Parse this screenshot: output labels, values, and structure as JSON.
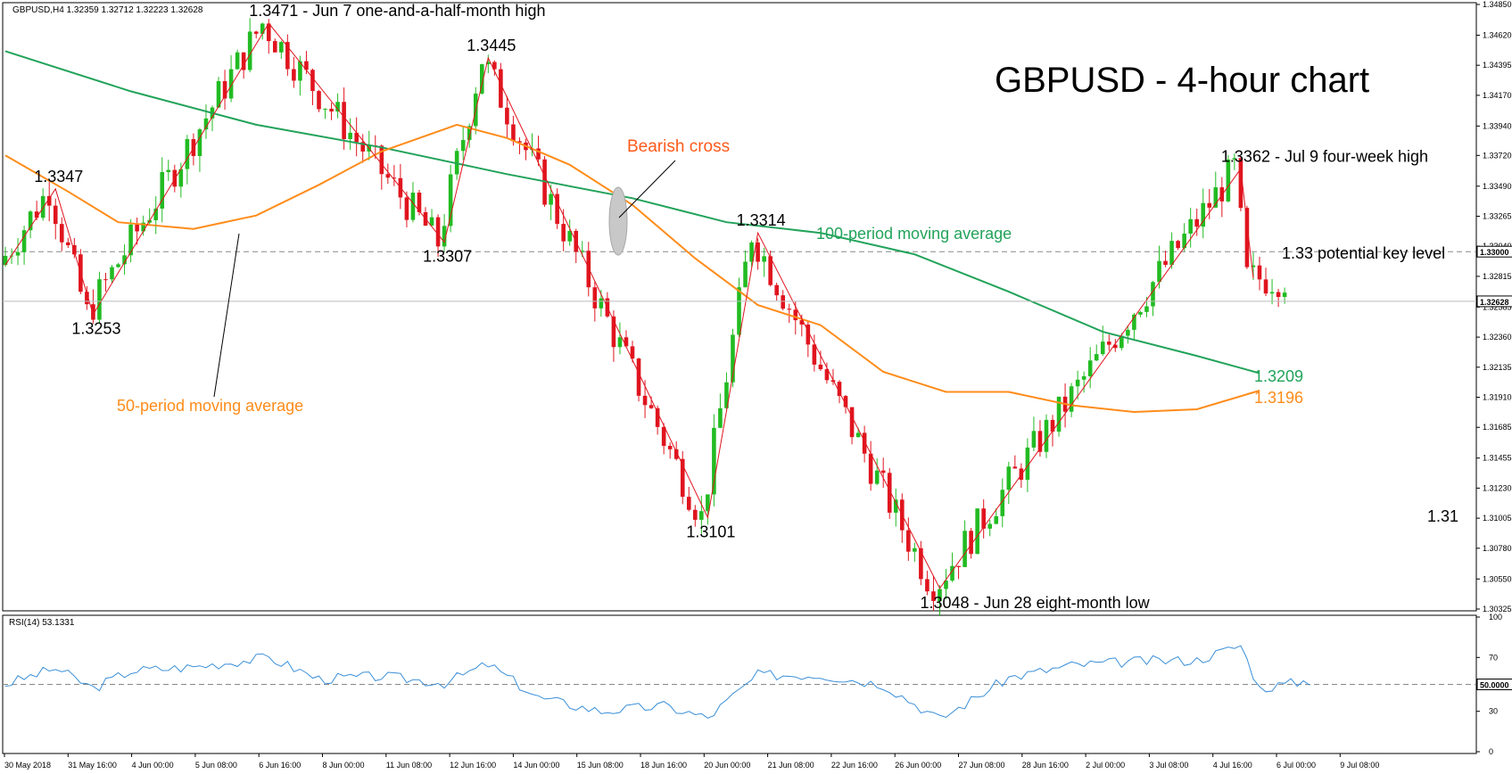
{
  "header": {
    "symbol_line": "GBPUSD,H4  1.32359 1.32712 1.32223 1.32628",
    "rsi_line": "RSI(14) 53.1331"
  },
  "title": "GBPUSD - 4-hour chart",
  "colors": {
    "up": "#22bb22",
    "down": "#e0141e",
    "ma50": "#ff8c1a",
    "ma100": "#22a35a",
    "zigzag": "#e0141e",
    "rsi": "#3a8fd8",
    "grid_dash": "#888888"
  },
  "chart_data": [
    {
      "type": "candlestick",
      "title": "GBPUSD - 4-hour chart",
      "ylim": [
        1.30325,
        1.3485
      ],
      "y_ticks": [
        "1.34850",
        "1.34620",
        "1.34395",
        "1.34170",
        "1.33940",
        "1.33720",
        "1.33490",
        "1.33265",
        "1.33040",
        "1.32815",
        "1.32585",
        "1.32360",
        "1.32135",
        "1.31910",
        "1.31685",
        "1.31455",
        "1.31230",
        "1.31005",
        "1.30780",
        "1.30550",
        "1.30325"
      ],
      "price_labels": {
        "key_level": "1.33000",
        "last_price": "1.32628"
      },
      "x_labels": [
        "30 May 2018",
        "31 May 16:00",
        "4 Jun 00:00",
        "5 Jun 08:00",
        "6 Jun 16:00",
        "8 Jun 00:00",
        "11 Jun 08:00",
        "12 Jun 16:00",
        "14 Jun 00:00",
        "15 Jun 08:00",
        "18 Jun 16:00",
        "20 Jun 00:00",
        "21 Jun 08:00",
        "22 Jun 16:00",
        "26 Jun 00:00",
        "27 Jun 08:00",
        "28 Jun 16:00",
        "2 Jul 00:00",
        "3 Jul 08:00",
        "4 Jul 16:00",
        "6 Jul 00:00",
        "9 Jul 08:00"
      ],
      "key_level": 1.33,
      "zigzag": [
        {
          "i": 0,
          "v": 1.329
        },
        {
          "i": 8,
          "v": 1.3347
        },
        {
          "i": 14,
          "v": 1.3253
        },
        {
          "i": 42,
          "v": 1.3471
        },
        {
          "i": 70,
          "v": 1.3307
        },
        {
          "i": 77,
          "v": 1.3445
        },
        {
          "i": 112,
          "v": 1.3101
        },
        {
          "i": 120,
          "v": 1.3314
        },
        {
          "i": 149,
          "v": 1.3048
        },
        {
          "i": 197,
          "v": 1.3362
        },
        {
          "i": 199,
          "v": 1.328
        }
      ],
      "ma100": [
        [
          0,
          1.345
        ],
        [
          20,
          1.342
        ],
        [
          40,
          1.3395
        ],
        [
          60,
          1.3378
        ],
        [
          80,
          1.3358
        ],
        [
          100,
          1.334
        ],
        [
          115,
          1.3322
        ],
        [
          130,
          1.3314
        ],
        [
          145,
          1.3298
        ],
        [
          160,
          1.327
        ],
        [
          175,
          1.324
        ],
        [
          190,
          1.3222
        ],
        [
          200,
          1.3209
        ]
      ],
      "ma50": [
        [
          0,
          1.3372
        ],
        [
          10,
          1.3345
        ],
        [
          18,
          1.3322
        ],
        [
          30,
          1.3317
        ],
        [
          40,
          1.3327
        ],
        [
          50,
          1.335
        ],
        [
          60,
          1.3375
        ],
        [
          72,
          1.3395
        ],
        [
          80,
          1.3385
        ],
        [
          90,
          1.3365
        ],
        [
          100,
          1.3335
        ],
        [
          110,
          1.3295
        ],
        [
          120,
          1.326
        ],
        [
          130,
          1.3245
        ],
        [
          140,
          1.321
        ],
        [
          150,
          1.3195
        ],
        [
          160,
          1.3195
        ],
        [
          170,
          1.3185
        ],
        [
          180,
          1.318
        ],
        [
          190,
          1.3182
        ],
        [
          200,
          1.3196
        ]
      ],
      "annotations": [
        {
          "i": 42,
          "v": 1.3471,
          "text": "1.3471 - Jun 7 one-and-a-half-month high",
          "pos": "above"
        },
        {
          "i": 77,
          "v": 1.3445,
          "text": "1.3445",
          "pos": "above"
        },
        {
          "i": 8,
          "v": 1.3347,
          "text": "1.3347",
          "pos": "above"
        },
        {
          "i": 14,
          "v": 1.3253,
          "text": "1.3253",
          "pos": "below"
        },
        {
          "i": 70,
          "v": 1.3307,
          "text": "1.3307",
          "pos": "below"
        },
        {
          "i": 120,
          "v": 1.3314,
          "text": "1.3314",
          "pos": "above"
        },
        {
          "i": 112,
          "v": 1.3101,
          "text": "1.3101",
          "pos": "below"
        },
        {
          "i": 149,
          "v": 1.3048,
          "text": "1.3048 - Jun 28 eight-month low",
          "pos": "below"
        },
        {
          "i": 197,
          "v": 1.3362,
          "text": "1.3362 - Jul 9 four-week high",
          "pos": "above"
        }
      ],
      "labels": {
        "bearish_cross": "Bearish cross",
        "ma100_label": "100-period moving average",
        "ma50_label": "50-period moving average",
        "ma100_value": "1.3209",
        "ma50_value": "1.3196",
        "key_level_label": "1.33 potential key level",
        "level_131": "1.31"
      }
    },
    {
      "type": "line",
      "title": "RSI(14) 53.1331",
      "ylim": [
        0,
        100
      ],
      "y_ticks": [
        "100",
        "70",
        "30",
        "0"
      ],
      "reference_level": 50,
      "reference_label": "50.0000",
      "x": [
        0,
        8,
        14,
        20,
        30,
        42,
        50,
        60,
        70,
        77,
        85,
        95,
        105,
        112,
        120,
        130,
        140,
        149,
        160,
        170,
        180,
        190,
        197,
        200,
        208
      ],
      "values": [
        50,
        62,
        47,
        60,
        63,
        70,
        54,
        56,
        51,
        65,
        40,
        30,
        34,
        25,
        57,
        57,
        50,
        24,
        55,
        64,
        67,
        68,
        79,
        47,
        53
      ]
    }
  ]
}
